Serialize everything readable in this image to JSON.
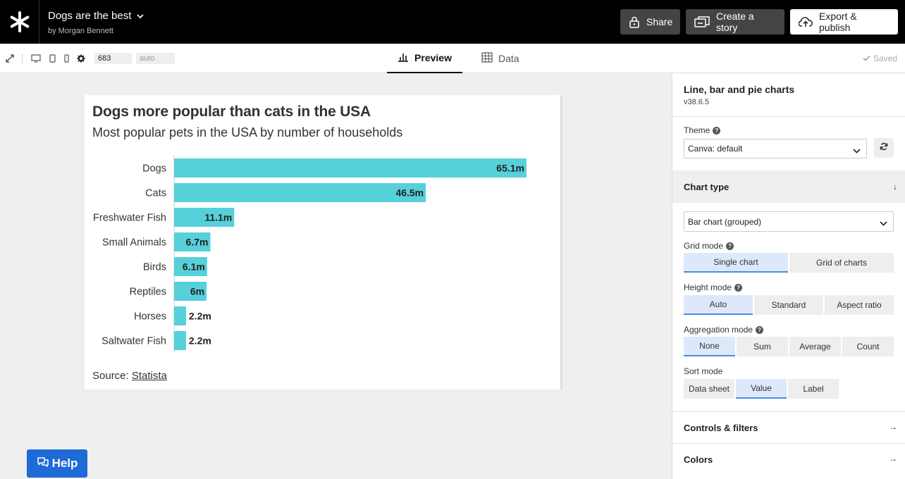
{
  "header": {
    "doc_title": "Dogs are the best",
    "author": "by Morgan Bennett",
    "share_label": "Share",
    "story_label": "Create a story",
    "export_label": "Export & publish"
  },
  "toolbar": {
    "width_value": "683",
    "height_value": "auto",
    "tab_preview": "Preview",
    "tab_data": "Data",
    "saved_label": "Saved"
  },
  "chart": {
    "title": "Dogs more popular than cats in the USA",
    "subtitle": "Most popular pets in the USA by number of households",
    "source_prefix": "Source: ",
    "source_link": "Statista",
    "bar_color": "#56d0d9"
  },
  "chart_data": {
    "type": "bar",
    "orientation": "horizontal",
    "title": "Dogs more popular than cats in the USA",
    "subtitle": "Most popular pets in the USA by number of households",
    "categories": [
      "Dogs",
      "Cats",
      "Freshwater Fish",
      "Small Animals",
      "Birds",
      "Reptiles",
      "Horses",
      "Saltwater Fish"
    ],
    "values": [
      65.1,
      46.5,
      11.1,
      6.7,
      6.1,
      6,
      2.2,
      2.2
    ],
    "value_labels": [
      "65.1m",
      "46.5m",
      "11.1m",
      "6.7m",
      "6.1m",
      "6m",
      "2.2m",
      "2.2m"
    ],
    "xlim": [
      0,
      65.1
    ],
    "grid": false,
    "legend": "none"
  },
  "panel": {
    "title": "Line, bar and pie charts",
    "version": "v38.6.5",
    "theme_label": "Theme",
    "theme_value": "Canva: default",
    "chart_type_title": "Chart type",
    "chart_type_value": "Bar chart (grouped)",
    "grid_mode_label": "Grid mode",
    "grid_mode_options": [
      "Single chart",
      "Grid of charts"
    ],
    "height_mode_label": "Height mode",
    "height_mode_options": [
      "Auto",
      "Standard",
      "Aspect ratio"
    ],
    "aggregation_label": "Aggregation mode",
    "aggregation_options": [
      "None",
      "Sum",
      "Average",
      "Count"
    ],
    "sort_label": "Sort mode",
    "sort_options": [
      "Data sheet",
      "Value",
      "Label"
    ],
    "controls_title": "Controls & filters",
    "colors_title": "Colors"
  },
  "help_label": "Help"
}
